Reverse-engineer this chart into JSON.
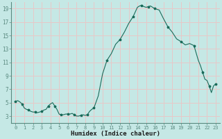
{
  "x": [
    0,
    0.25,
    0.5,
    0.75,
    1,
    1.25,
    1.5,
    1.75,
    2,
    2.25,
    2.5,
    2.75,
    3,
    3.25,
    3.5,
    3.75,
    4,
    4.25,
    4.5,
    4.75,
    5,
    5.25,
    5.5,
    5.75,
    6,
    6.25,
    6.5,
    6.75,
    7,
    7.25,
    7.5,
    7.75,
    8,
    8.25,
    8.5,
    8.75,
    9,
    9.5,
    10,
    10.5,
    11,
    11.5,
    12,
    12.5,
    13,
    13.5,
    14,
    14.25,
    14.5,
    14.75,
    15,
    15.25,
    15.5,
    15.75,
    16,
    16.5,
    17,
    17.5,
    18,
    18.5,
    19,
    19.5,
    20,
    20.5,
    21,
    21.25,
    21.5,
    21.75,
    22,
    22.25,
    22.5,
    22.75,
    23
  ],
  "y": [
    5.2,
    5.3,
    5.1,
    4.8,
    4.2,
    4.0,
    3.9,
    3.7,
    3.6,
    3.6,
    3.5,
    3.6,
    3.7,
    3.9,
    4.0,
    4.5,
    4.8,
    5.0,
    4.5,
    4.0,
    3.3,
    3.2,
    3.2,
    3.3,
    3.3,
    3.3,
    3.4,
    3.2,
    3.0,
    3.0,
    3.1,
    3.2,
    3.1,
    3.2,
    3.7,
    4.0,
    4.2,
    6.0,
    9.3,
    11.3,
    12.3,
    13.7,
    14.4,
    15.5,
    16.8,
    17.8,
    19.2,
    19.4,
    19.5,
    19.3,
    19.2,
    19.3,
    19.4,
    19.2,
    19.0,
    18.8,
    17.5,
    16.3,
    15.5,
    14.5,
    14.1,
    13.6,
    13.8,
    13.5,
    11.3,
    10.5,
    9.5,
    8.5,
    8.3,
    7.5,
    6.5,
    7.5,
    7.8
  ],
  "xlim": [
    -0.5,
    23.5
  ],
  "ylim": [
    2,
    20
  ],
  "xticks": [
    0,
    1,
    2,
    3,
    4,
    5,
    6,
    7,
    8,
    9,
    10,
    11,
    12,
    13,
    14,
    15,
    16,
    17,
    18,
    19,
    20,
    21,
    22,
    23
  ],
  "yticks": [
    3,
    5,
    7,
    9,
    11,
    13,
    15,
    17,
    19
  ],
  "xlabel": "Humidex (Indice chaleur)",
  "line_color": "#1a6b5a",
  "marker_color": "#1a6b5a",
  "bg_color": "#c5e8e5",
  "grid_color": "#e8c8c8",
  "spine_color": "#5a8a80"
}
